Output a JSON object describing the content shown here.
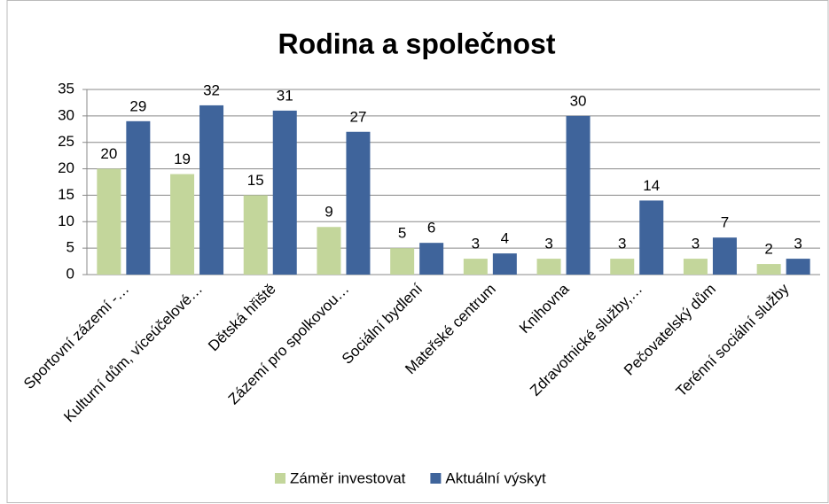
{
  "chart_data": {
    "type": "bar",
    "title": "Rodina a společnost",
    "categories": [
      "Sportovní zázemí -…",
      "Kulturní dům, víceúčelové…",
      "Dětská hřiště",
      "Zázemí pro spolkovou…",
      "Sociální bydlení",
      "Mateřské centrum",
      "Knihovna",
      "Zdravotnické služby,…",
      "Pečovatelský dům",
      "Terénní sociální služby"
    ],
    "series": [
      {
        "name": "Záměr investovat",
        "color": "#c3d69b",
        "values": [
          20,
          19,
          15,
          9,
          5,
          3,
          3,
          3,
          3,
          2
        ]
      },
      {
        "name": "Aktuální výskyt",
        "color": "#3f649b",
        "values": [
          29,
          32,
          31,
          27,
          6,
          4,
          30,
          14,
          7,
          3
        ]
      }
    ],
    "ylim": [
      0,
      35
    ],
    "yticks": [
      0,
      5,
      10,
      15,
      20,
      25,
      30,
      35
    ],
    "grid": true,
    "legend": "bottom"
  }
}
